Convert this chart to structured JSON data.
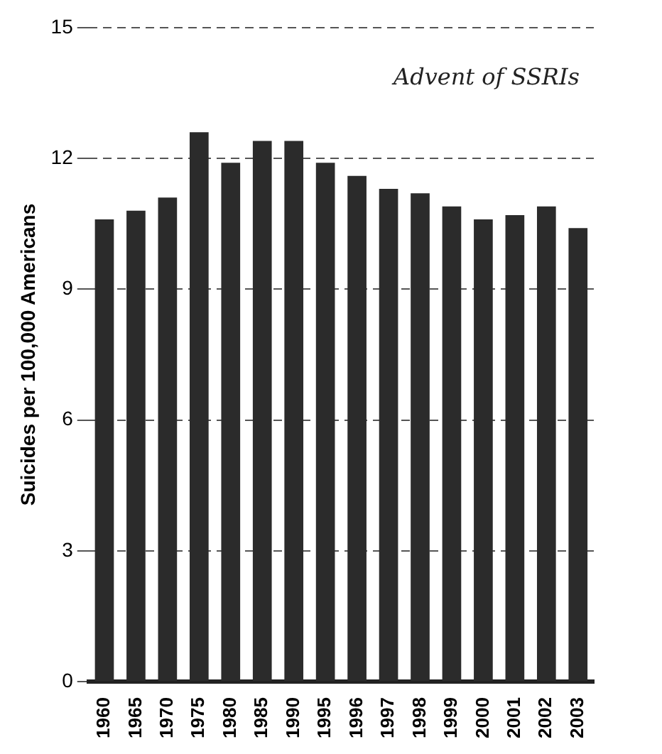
{
  "chart_data": {
    "type": "bar",
    "ylabel": "Suicides per 100,000 Americans",
    "categories": [
      "1960",
      "1965",
      "1970",
      "1975",
      "1980",
      "1985",
      "1990",
      "1995",
      "1996",
      "1997",
      "1998",
      "1999",
      "2000",
      "2001",
      "2002",
      "2003"
    ],
    "values": [
      10.6,
      10.8,
      11.1,
      12.6,
      11.9,
      12.4,
      12.4,
      11.9,
      11.6,
      11.3,
      11.2,
      10.9,
      10.6,
      10.7,
      10.9,
      10.4
    ],
    "color": "#2b2b2b",
    "ylim": [
      0,
      15
    ],
    "yticks": [
      0,
      3,
      6,
      9,
      12,
      15
    ],
    "grid": "y",
    "annotations": [
      "Advent of SSRIs"
    ]
  }
}
